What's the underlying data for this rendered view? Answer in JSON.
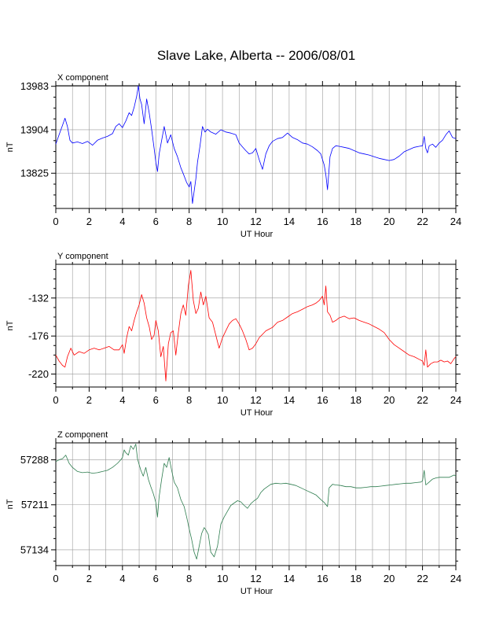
{
  "title": "Slave Lake, Alberta -- 2006/08/01",
  "chart_data": [
    {
      "type": "line",
      "panel_label": "X component",
      "xlabel": "UT Hour",
      "ylabel": "nT",
      "xlim": [
        0,
        24
      ],
      "ylim": [
        13761,
        13984
      ],
      "xticks": [
        0,
        2,
        4,
        6,
        8,
        10,
        12,
        14,
        16,
        18,
        20,
        22,
        24
      ],
      "yticks": [
        13825,
        13904,
        13983
      ],
      "grid": true,
      "color": "#0000ff",
      "series": [
        {
          "x": [
            0,
            0.2,
            0.4,
            0.55,
            0.7,
            0.85,
            1.0,
            1.3,
            1.6,
            1.9,
            2.2,
            2.5,
            2.8,
            3.1,
            3.4,
            3.6,
            3.8,
            4.0,
            4.2,
            4.4,
            4.55,
            4.7,
            4.85,
            4.95,
            5.05,
            5.15,
            5.3,
            5.45,
            5.6,
            5.75,
            5.9,
            6.0,
            6.1,
            6.2,
            6.35,
            6.5,
            6.7,
            6.9,
            7.1,
            7.3,
            7.5,
            7.7,
            7.85,
            8.0,
            8.1,
            8.2,
            8.3,
            8.4,
            8.5,
            8.65,
            8.8,
            8.95,
            9.1,
            9.3,
            9.6,
            9.9,
            10.2,
            10.5,
            10.8,
            11.0,
            11.2,
            11.4,
            11.6,
            11.8,
            12.0,
            12.2,
            12.4,
            12.6,
            12.8,
            13.0,
            13.3,
            13.6,
            13.9,
            14.2,
            14.5,
            14.8,
            15.1,
            15.4,
            15.7,
            15.9,
            16.0,
            16.1,
            16.2,
            16.3,
            16.45,
            16.6,
            16.8,
            17.0,
            17.3,
            17.6,
            17.9,
            18.2,
            18.5,
            18.8,
            19.1,
            19.4,
            19.7,
            20.0,
            20.3,
            20.6,
            20.9,
            21.2,
            21.5,
            21.8,
            22.0,
            22.1,
            22.2,
            22.3,
            22.4,
            22.6,
            22.8,
            23.0,
            23.2,
            23.4,
            23.6,
            23.8,
            24.0
          ],
          "y": [
            13878,
            13895,
            13912,
            13925,
            13910,
            13885,
            13880,
            13882,
            13879,
            13883,
            13876,
            13885,
            13889,
            13892,
            13897,
            13910,
            13915,
            13908,
            13920,
            13935,
            13930,
            13945,
            13965,
            13998,
            13960,
            13950,
            13915,
            13960,
            13935,
            13905,
            13870,
            13845,
            13828,
            13860,
            13885,
            13910,
            13880,
            13895,
            13870,
            13855,
            13835,
            13820,
            13808,
            13800,
            13810,
            13770,
            13792,
            13815,
            13845,
            13875,
            13910,
            13900,
            13905,
            13900,
            13896,
            13904,
            13900,
            13898,
            13895,
            13880,
            13873,
            13866,
            13860,
            13862,
            13870,
            13850,
            13832,
            13860,
            13875,
            13883,
            13888,
            13890,
            13898,
            13890,
            13886,
            13880,
            13878,
            13873,
            13866,
            13860,
            13850,
            13840,
            13822,
            13795,
            13855,
            13870,
            13875,
            13874,
            13872,
            13870,
            13866,
            13862,
            13860,
            13858,
            13855,
            13852,
            13850,
            13848,
            13850,
            13856,
            13864,
            13868,
            13872,
            13874,
            13875,
            13892,
            13870,
            13862,
            13875,
            13878,
            13872,
            13880,
            13885,
            13895,
            13902,
            13890,
            13888
          ]
        }
      ]
    },
    {
      "type": "line",
      "panel_label": "Y component",
      "xlabel": "UT Hour",
      "ylabel": "nT",
      "xlim": [
        0,
        24
      ],
      "ylim": [
        -235,
        -93
      ],
      "xticks": [
        0,
        2,
        4,
        6,
        8,
        10,
        12,
        14,
        16,
        18,
        20,
        22,
        24
      ],
      "yticks": [
        -220,
        -176,
        -132
      ],
      "grid": true,
      "color": "#ff0000",
      "series": [
        {
          "x": [
            0,
            0.2,
            0.4,
            0.55,
            0.7,
            0.9,
            1.1,
            1.4,
            1.7,
            2.0,
            2.3,
            2.6,
            2.9,
            3.2,
            3.5,
            3.8,
            4.0,
            4.1,
            4.25,
            4.4,
            4.55,
            4.7,
            4.85,
            5.0,
            5.15,
            5.3,
            5.45,
            5.6,
            5.75,
            5.9,
            6.0,
            6.15,
            6.3,
            6.45,
            6.6,
            6.75,
            6.9,
            7.05,
            7.2,
            7.35,
            7.5,
            7.65,
            7.8,
            7.95,
            8.1,
            8.25,
            8.4,
            8.55,
            8.7,
            8.85,
            9.0,
            9.2,
            9.4,
            9.6,
            9.8,
            10.0,
            10.2,
            10.4,
            10.6,
            10.8,
            11.0,
            11.2,
            11.4,
            11.6,
            11.8,
            12.0,
            12.2,
            12.4,
            12.6,
            12.8,
            13.0,
            13.3,
            13.6,
            13.9,
            14.2,
            14.5,
            14.8,
            15.1,
            15.4,
            15.6,
            15.8,
            16.0,
            16.1,
            16.2,
            16.3,
            16.45,
            16.6,
            16.8,
            17.0,
            17.3,
            17.6,
            17.9,
            18.2,
            18.5,
            18.8,
            19.1,
            19.4,
            19.7,
            20.0,
            20.3,
            20.6,
            20.9,
            21.2,
            21.5,
            21.8,
            22.0,
            22.1,
            22.2,
            22.3,
            22.5,
            22.7,
            22.9,
            23.1,
            23.3,
            23.5,
            23.7,
            23.9,
            24.0
          ],
          "y": [
            -198,
            -205,
            -210,
            -212,
            -200,
            -190,
            -198,
            -194,
            -196,
            -192,
            -190,
            -192,
            -190,
            -188,
            -192,
            -192,
            -186,
            -196,
            -178,
            -165,
            -170,
            -158,
            -148,
            -140,
            -128,
            -138,
            -155,
            -165,
            -180,
            -175,
            -158,
            -170,
            -200,
            -188,
            -228,
            -185,
            -172,
            -170,
            -198,
            -172,
            -150,
            -140,
            -152,
            -118,
            -100,
            -135,
            -150,
            -144,
            -125,
            -140,
            -130,
            -155,
            -160,
            -175,
            -190,
            -178,
            -170,
            -162,
            -158,
            -156,
            -162,
            -170,
            -180,
            -192,
            -190,
            -185,
            -178,
            -174,
            -170,
            -168,
            -166,
            -160,
            -158,
            -154,
            -150,
            -148,
            -145,
            -142,
            -140,
            -138,
            -135,
            -130,
            -140,
            -118,
            -148,
            -152,
            -160,
            -158,
            -155,
            -153,
            -156,
            -155,
            -158,
            -160,
            -162,
            -165,
            -168,
            -172,
            -180,
            -186,
            -190,
            -194,
            -198,
            -200,
            -203,
            -205,
            -210,
            -192,
            -212,
            -208,
            -206,
            -206,
            -204,
            -206,
            -205,
            -208,
            -202,
            -200
          ]
        }
      ]
    },
    {
      "type": "line",
      "panel_label": "Z component",
      "xlabel": "UT Hour",
      "ylabel": "nT",
      "xlim": [
        0,
        24
      ],
      "ylim": [
        57107,
        57317
      ],
      "xticks": [
        0,
        2,
        4,
        6,
        8,
        10,
        12,
        14,
        16,
        18,
        20,
        22,
        24
      ],
      "yticks": [
        57134,
        57211,
        57288
      ],
      "grid": true,
      "color": "#2e7d4f",
      "series": [
        {
          "x": [
            0,
            0.2,
            0.4,
            0.6,
            0.8,
            1.0,
            1.3,
            1.6,
            1.9,
            2.2,
            2.5,
            2.8,
            3.1,
            3.4,
            3.7,
            3.9,
            4.0,
            4.1,
            4.2,
            4.35,
            4.5,
            4.65,
            4.8,
            4.9,
            5.0,
            5.1,
            5.25,
            5.4,
            5.55,
            5.7,
            5.85,
            6.0,
            6.1,
            6.2,
            6.35,
            6.5,
            6.65,
            6.8,
            6.95,
            7.1,
            7.3,
            7.5,
            7.7,
            7.85,
            8.0,
            8.15,
            8.3,
            8.45,
            8.6,
            8.75,
            8.9,
            9.0,
            9.15,
            9.3,
            9.5,
            9.7,
            9.9,
            10.1,
            10.3,
            10.5,
            10.7,
            10.9,
            11.1,
            11.3,
            11.5,
            11.7,
            11.9,
            12.1,
            12.3,
            12.5,
            12.7,
            12.9,
            13.2,
            13.5,
            13.8,
            14.1,
            14.4,
            14.7,
            15.0,
            15.3,
            15.6,
            15.9,
            16.1,
            16.3,
            16.4,
            16.6,
            16.8,
            17.1,
            17.4,
            17.7,
            18.0,
            18.3,
            18.6,
            18.9,
            19.2,
            19.5,
            19.8,
            20.1,
            20.4,
            20.7,
            21.0,
            21.3,
            21.6,
            21.9,
            22.0,
            22.1,
            22.2,
            22.4,
            22.6,
            22.8,
            23.0,
            23.3,
            23.6,
            23.9,
            24.0
          ],
          "y": [
            57285,
            57288,
            57290,
            57296,
            57282,
            57275,
            57268,
            57266,
            57267,
            57265,
            57266,
            57268,
            57270,
            57275,
            57282,
            57288,
            57292,
            57305,
            57300,
            57296,
            57312,
            57306,
            57315,
            57290,
            57280,
            57270,
            57260,
            57275,
            57255,
            57242,
            57230,
            57215,
            57190,
            57225,
            57255,
            57282,
            57275,
            57292,
            57270,
            57250,
            57240,
            57220,
            57208,
            57190,
            57170,
            57152,
            57130,
            57118,
            57140,
            57162,
            57172,
            57168,
            57160,
            57130,
            57122,
            57140,
            57178,
            57190,
            57200,
            57210,
            57214,
            57218,
            57216,
            57210,
            57205,
            57213,
            57218,
            57222,
            57232,
            57238,
            57242,
            57246,
            57248,
            57247,
            57248,
            57246,
            57244,
            57240,
            57236,
            57232,
            57228,
            57220,
            57215,
            57208,
            57240,
            57246,
            57245,
            57244,
            57242,
            57242,
            57240,
            57240,
            57241,
            57242,
            57242,
            57243,
            57244,
            57245,
            57246,
            57247,
            57248,
            57248,
            57249,
            57250,
            57252,
            57270,
            57245,
            57250,
            57255,
            57257,
            57258,
            57258,
            57258,
            57262,
            57260
          ]
        }
      ]
    }
  ]
}
